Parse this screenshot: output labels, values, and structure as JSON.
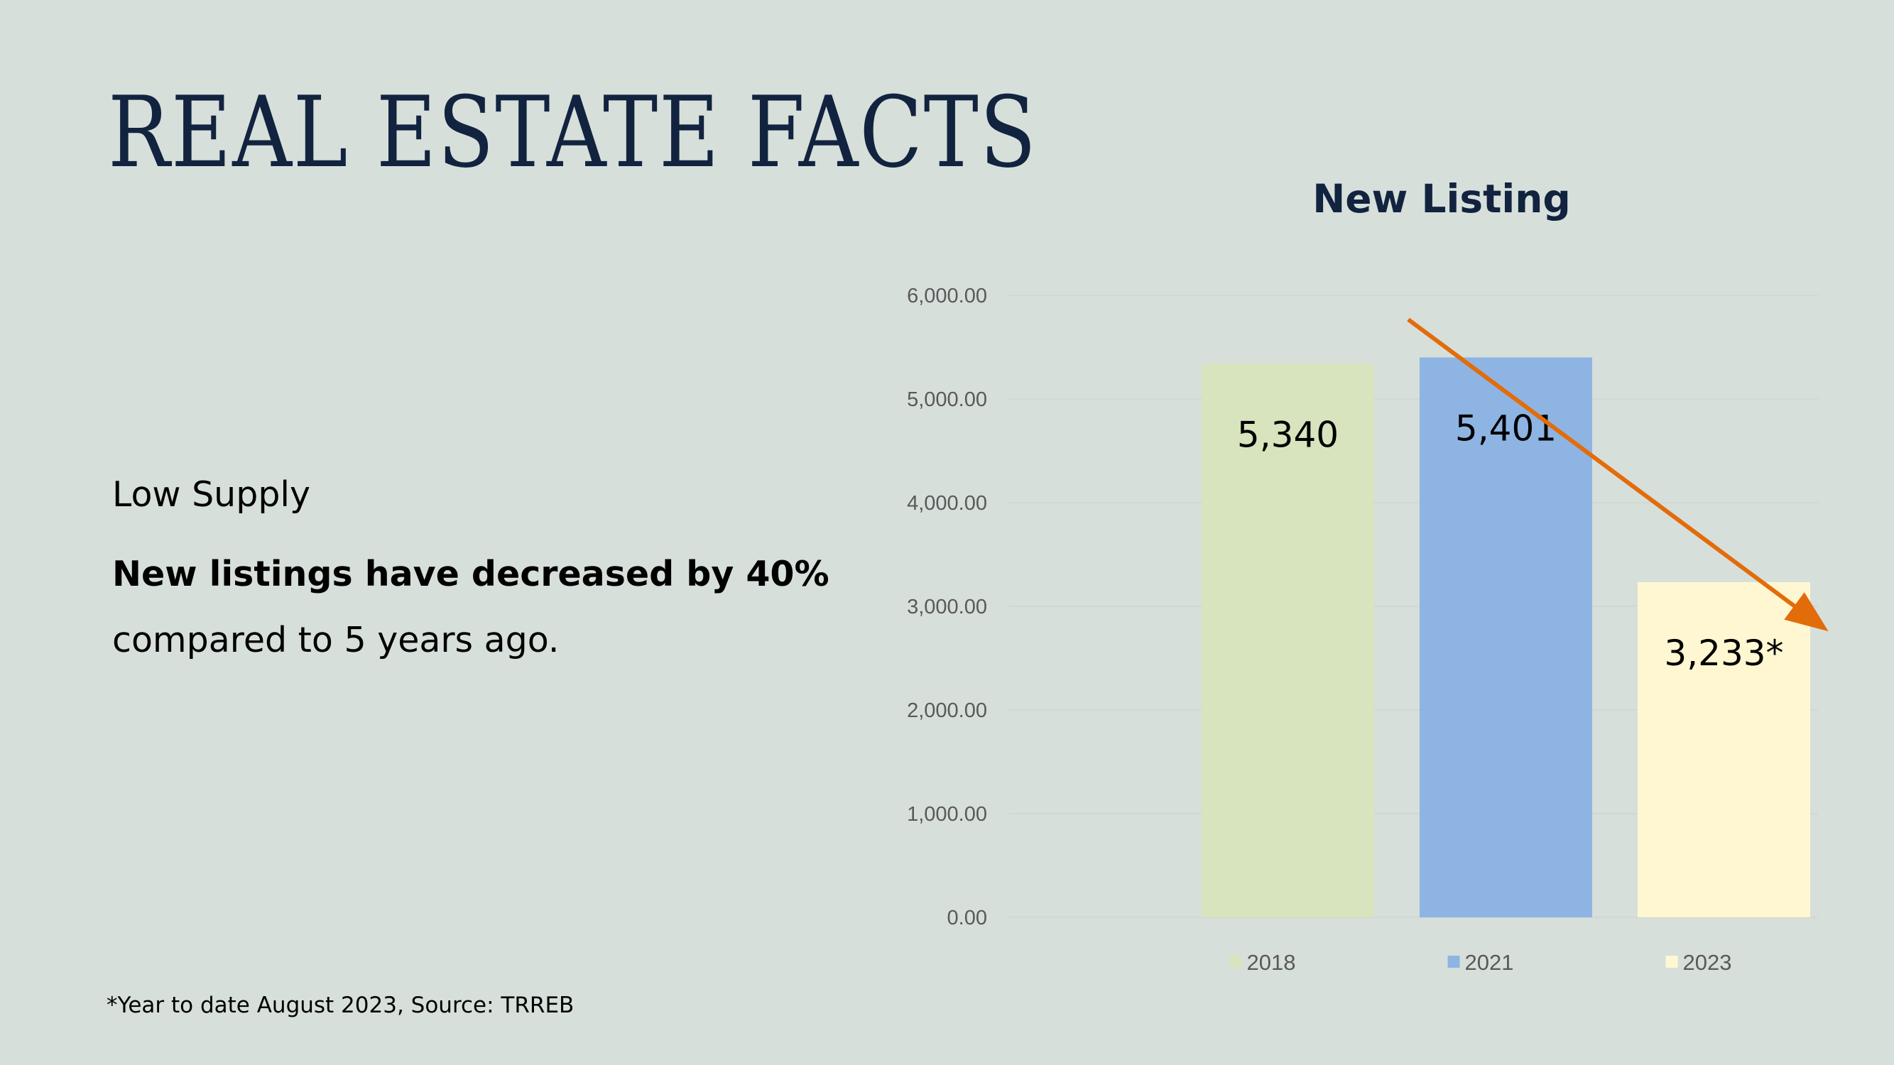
{
  "slide": {
    "title": "REAL ESTATE FACTS",
    "subtitle": "Low Supply",
    "headline": "New listings have decreased by 40%",
    "body": "compared to 5 years ago.",
    "footnote": "*Year to date August 2023, Source: TRREB"
  },
  "chart_data": {
    "type": "bar",
    "title": "New Listing",
    "categories": [
      "2018",
      "2021",
      "2023"
    ],
    "values": [
      5340,
      5401,
      3233
    ],
    "data_labels": [
      "5,340",
      "5,401",
      "3,233*"
    ],
    "colors": [
      "#d7e4bd",
      "#8eb4e3",
      "#fff7d1"
    ],
    "ylim": [
      0,
      6000
    ],
    "yticks": [
      0,
      1000,
      2000,
      3000,
      4000,
      5000,
      6000
    ],
    "ytick_labels": [
      "0.00",
      "1,000.00",
      "2,000.00",
      "3,000.00",
      "4,000.00",
      "5,000.00",
      "6,000.00"
    ],
    "grid": true,
    "legend_position": "bottom",
    "trend_arrow_color": "#e36c0a"
  }
}
